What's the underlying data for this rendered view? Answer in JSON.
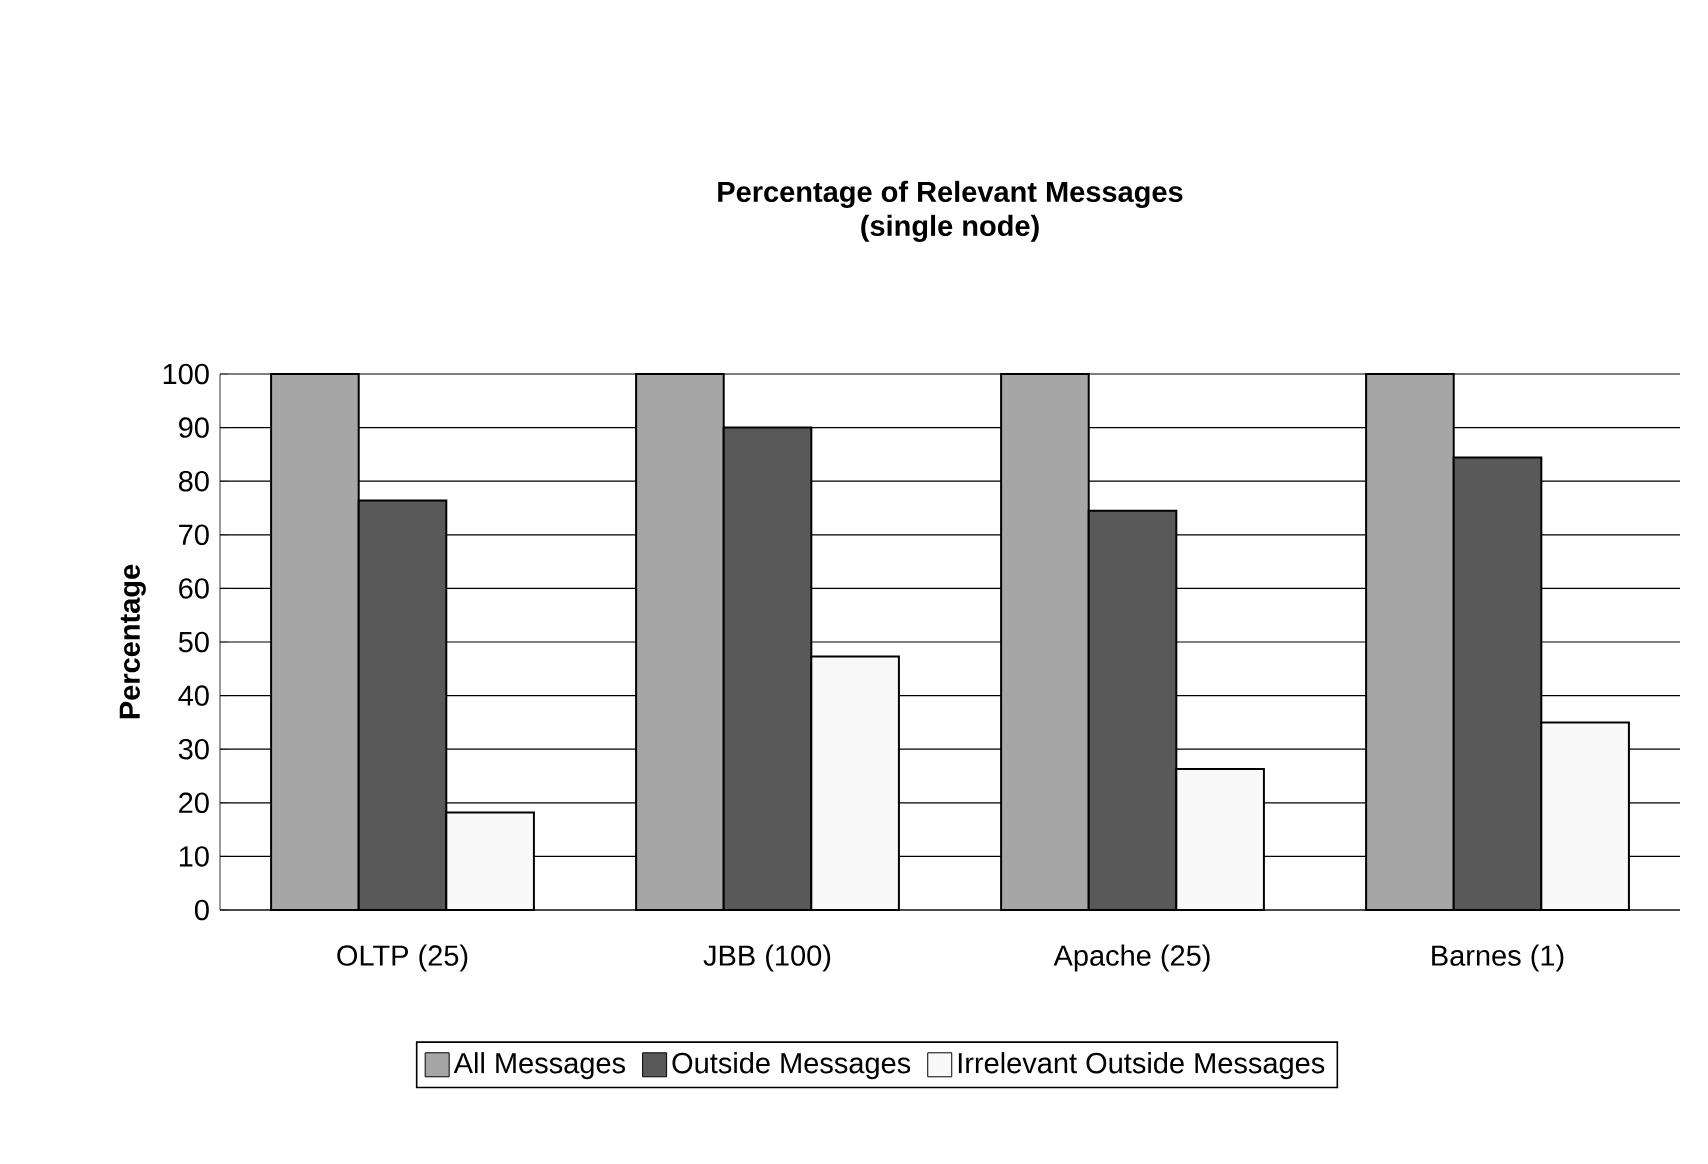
{
  "chart_data": {
    "type": "bar",
    "title": "Percentage of Relevant Messages",
    "subtitle": "(single node)",
    "ylabel": "Percentage",
    "categories": [
      "OLTP (25)",
      "JBB (100)",
      "Apache (25)",
      "Barnes (1)"
    ],
    "series": [
      {
        "name": "All Messages",
        "color": "#a6a6a6",
        "values": [
          100,
          100,
          100,
          100
        ]
      },
      {
        "name": "Outside Messages",
        "color": "#595959",
        "values": [
          76.4,
          90,
          74.5,
          84.4
        ]
      },
      {
        "name": "Irrelevant Outside Messages",
        "color": "#f9f9f9",
        "values": [
          18.2,
          47.3,
          26.3,
          35
        ]
      }
    ],
    "ylim": [
      0,
      100
    ],
    "yticks": [
      0,
      10,
      20,
      30,
      40,
      50,
      60,
      70,
      80,
      90,
      100
    ],
    "grid": "y",
    "legend": "bottom"
  }
}
